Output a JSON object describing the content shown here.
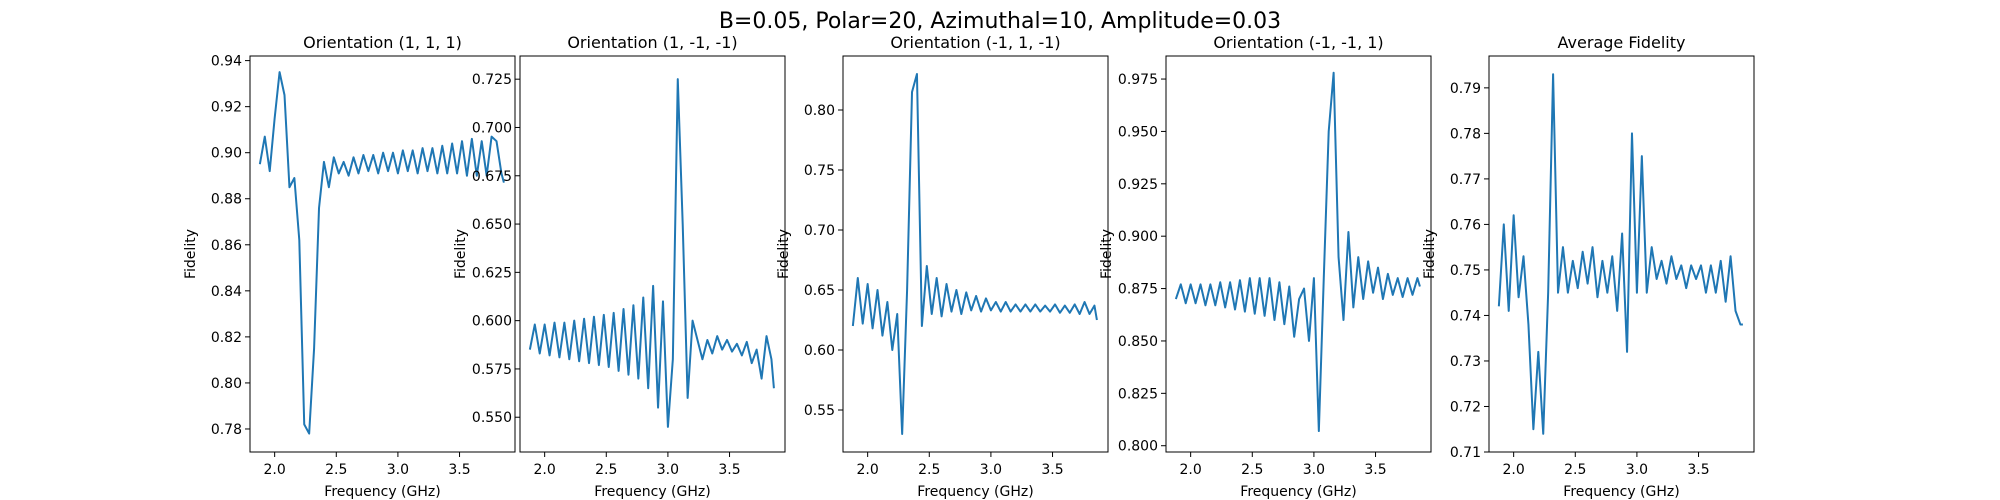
{
  "suptitle": "B=0.05, Polar=20, Azimuthal=10, Amplitude=0.03",
  "chart_data": [
    {
      "type": "line",
      "title": "Orientation (1, 1, 1)",
      "xlabel": "Frequency (GHz)",
      "ylabel": "Fidelity",
      "xlim": [
        1.8,
        3.95
      ],
      "ylim": [
        0.77,
        0.942
      ],
      "xticks": [
        "2.0",
        "2.5",
        "3.0",
        "3.5"
      ],
      "yticks": [
        "0.78",
        "0.80",
        "0.82",
        "0.84",
        "0.86",
        "0.88",
        "0.90",
        "0.92",
        "0.94"
      ],
      "color": "#1f77b4",
      "series": [
        {
          "x": [
            1.88,
            1.92,
            1.96,
            2.0,
            2.04,
            2.08,
            2.1,
            2.12,
            2.16,
            2.2,
            2.24,
            2.28,
            2.32,
            2.36,
            2.4,
            2.44,
            2.48,
            2.52,
            2.56,
            2.6,
            2.64,
            2.68,
            2.72,
            2.76,
            2.8,
            2.84,
            2.88,
            2.92,
            2.96,
            3.0,
            3.04,
            3.08,
            3.12,
            3.16,
            3.2,
            3.24,
            3.28,
            3.32,
            3.36,
            3.4,
            3.44,
            3.48,
            3.52,
            3.56,
            3.6,
            3.64,
            3.68,
            3.72,
            3.76,
            3.8,
            3.84,
            3.86
          ],
          "y": [
            0.895,
            0.907,
            0.892,
            0.915,
            0.935,
            0.925,
            0.905,
            0.885,
            0.889,
            0.862,
            0.782,
            0.778,
            0.815,
            0.876,
            0.896,
            0.885,
            0.898,
            0.891,
            0.896,
            0.89,
            0.898,
            0.891,
            0.899,
            0.892,
            0.899,
            0.891,
            0.9,
            0.892,
            0.9,
            0.891,
            0.901,
            0.892,
            0.901,
            0.891,
            0.902,
            0.892,
            0.902,
            0.891,
            0.903,
            0.891,
            0.904,
            0.891,
            0.905,
            0.89,
            0.906,
            0.89,
            0.905,
            0.89,
            0.907,
            0.905,
            0.891,
            0.887
          ]
        }
      ]
    },
    {
      "type": "line",
      "title": "Orientation (1, -1, -1)",
      "xlabel": "Frequency (GHz)",
      "ylabel": "Fidelity",
      "xlim": [
        1.8,
        3.95
      ],
      "ylim": [
        0.532,
        0.737
      ],
      "xticks": [
        "2.0",
        "2.5",
        "3.0",
        "3.5"
      ],
      "yticks": [
        "0.550",
        "0.575",
        "0.600",
        "0.625",
        "0.650",
        "0.675",
        "0.700",
        "0.725"
      ],
      "color": "#1f77b4",
      "series": [
        {
          "x": [
            1.88,
            1.92,
            1.96,
            2.0,
            2.04,
            2.08,
            2.12,
            2.16,
            2.2,
            2.24,
            2.28,
            2.32,
            2.36,
            2.4,
            2.44,
            2.48,
            2.52,
            2.56,
            2.6,
            2.64,
            2.68,
            2.72,
            2.76,
            2.8,
            2.84,
            2.88,
            2.92,
            2.96,
            3.0,
            3.04,
            3.08,
            3.12,
            3.16,
            3.2,
            3.24,
            3.28,
            3.32,
            3.36,
            3.4,
            3.44,
            3.48,
            3.52,
            3.56,
            3.6,
            3.64,
            3.68,
            3.72,
            3.76,
            3.8,
            3.84,
            3.86
          ],
          "y": [
            0.585,
            0.598,
            0.583,
            0.598,
            0.582,
            0.599,
            0.581,
            0.599,
            0.58,
            0.6,
            0.579,
            0.601,
            0.578,
            0.602,
            0.577,
            0.603,
            0.576,
            0.604,
            0.574,
            0.606,
            0.572,
            0.608,
            0.57,
            0.612,
            0.565,
            0.618,
            0.555,
            0.61,
            0.545,
            0.58,
            0.725,
            0.65,
            0.56,
            0.6,
            0.59,
            0.58,
            0.59,
            0.583,
            0.592,
            0.585,
            0.59,
            0.584,
            0.588,
            0.582,
            0.589,
            0.578,
            0.585,
            0.57,
            0.592,
            0.58,
            0.565
          ]
        }
      ]
    },
    {
      "type": "line",
      "title": "Orientation (-1, 1, -1)",
      "xlabel": "Frequency (GHz)",
      "ylabel": "Fidelity",
      "xlim": [
        1.8,
        3.95
      ],
      "ylim": [
        0.515,
        0.845
      ],
      "xticks": [
        "2.0",
        "2.5",
        "3.0",
        "3.5"
      ],
      "yticks": [
        "0.55",
        "0.60",
        "0.65",
        "0.70",
        "0.75",
        "0.80"
      ],
      "color": "#1f77b4",
      "series": [
        {
          "x": [
            1.88,
            1.92,
            1.96,
            2.0,
            2.04,
            2.08,
            2.12,
            2.16,
            2.2,
            2.24,
            2.28,
            2.32,
            2.36,
            2.4,
            2.44,
            2.48,
            2.52,
            2.56,
            2.6,
            2.64,
            2.68,
            2.72,
            2.76,
            2.8,
            2.84,
            2.88,
            2.92,
            2.96,
            3.0,
            3.04,
            3.08,
            3.12,
            3.16,
            3.2,
            3.24,
            3.28,
            3.32,
            3.36,
            3.4,
            3.44,
            3.48,
            3.52,
            3.56,
            3.6,
            3.64,
            3.68,
            3.72,
            3.76,
            3.8,
            3.84,
            3.86
          ],
          "y": [
            0.62,
            0.66,
            0.622,
            0.655,
            0.618,
            0.65,
            0.612,
            0.64,
            0.6,
            0.63,
            0.53,
            0.65,
            0.815,
            0.83,
            0.62,
            0.67,
            0.63,
            0.66,
            0.628,
            0.655,
            0.632,
            0.65,
            0.63,
            0.648,
            0.633,
            0.645,
            0.632,
            0.643,
            0.633,
            0.64,
            0.632,
            0.64,
            0.632,
            0.638,
            0.632,
            0.638,
            0.632,
            0.638,
            0.632,
            0.637,
            0.632,
            0.638,
            0.631,
            0.637,
            0.631,
            0.638,
            0.63,
            0.64,
            0.63,
            0.637,
            0.625
          ]
        }
      ]
    },
    {
      "type": "line",
      "title": "Orientation (-1, -1, 1)",
      "xlabel": "Frequency (GHz)",
      "ylabel": "Fidelity",
      "xlim": [
        1.8,
        3.95
      ],
      "ylim": [
        0.797,
        0.986
      ],
      "xticks": [
        "2.0",
        "2.5",
        "3.0",
        "3.5"
      ],
      "yticks": [
        "0.800",
        "0.825",
        "0.850",
        "0.875",
        "0.900",
        "0.925",
        "0.950",
        "0.975"
      ],
      "color": "#1f77b4",
      "series": [
        {
          "x": [
            1.88,
            1.92,
            1.96,
            2.0,
            2.04,
            2.08,
            2.12,
            2.16,
            2.2,
            2.24,
            2.28,
            2.32,
            2.36,
            2.4,
            2.44,
            2.48,
            2.52,
            2.56,
            2.6,
            2.64,
            2.68,
            2.72,
            2.76,
            2.8,
            2.84,
            2.88,
            2.92,
            2.96,
            3.0,
            3.04,
            3.08,
            3.12,
            3.16,
            3.2,
            3.24,
            3.28,
            3.32,
            3.36,
            3.4,
            3.44,
            3.48,
            3.52,
            3.56,
            3.6,
            3.64,
            3.68,
            3.72,
            3.76,
            3.8,
            3.84,
            3.86
          ],
          "y": [
            0.87,
            0.877,
            0.868,
            0.877,
            0.868,
            0.877,
            0.867,
            0.877,
            0.867,
            0.878,
            0.866,
            0.878,
            0.865,
            0.879,
            0.864,
            0.88,
            0.863,
            0.88,
            0.862,
            0.88,
            0.86,
            0.878,
            0.858,
            0.876,
            0.852,
            0.87,
            0.875,
            0.85,
            0.88,
            0.807,
            0.88,
            0.95,
            0.978,
            0.89,
            0.86,
            0.902,
            0.866,
            0.89,
            0.87,
            0.888,
            0.873,
            0.885,
            0.87,
            0.882,
            0.872,
            0.88,
            0.871,
            0.88,
            0.872,
            0.88,
            0.876
          ]
        }
      ]
    },
    {
      "type": "line",
      "title": "Average Fidelity",
      "xlabel": "Frequency (GHz)",
      "ylabel": "Fidelity",
      "xlim": [
        1.8,
        3.95
      ],
      "ylim": [
        0.71,
        0.797
      ],
      "xticks": [
        "2.0",
        "2.5",
        "3.0",
        "3.5"
      ],
      "yticks": [
        "0.71",
        "0.72",
        "0.73",
        "0.74",
        "0.75",
        "0.76",
        "0.77",
        "0.78",
        "0.79"
      ],
      "color": "#1f77b4",
      "series": [
        {
          "x": [
            1.88,
            1.92,
            1.96,
            2.0,
            2.04,
            2.08,
            2.12,
            2.16,
            2.2,
            2.24,
            2.28,
            2.32,
            2.36,
            2.4,
            2.44,
            2.48,
            2.52,
            2.56,
            2.6,
            2.64,
            2.68,
            2.72,
            2.76,
            2.8,
            2.84,
            2.88,
            2.92,
            2.96,
            3.0,
            3.04,
            3.08,
            3.12,
            3.16,
            3.2,
            3.24,
            3.28,
            3.32,
            3.36,
            3.4,
            3.44,
            3.48,
            3.52,
            3.56,
            3.6,
            3.64,
            3.68,
            3.72,
            3.76,
            3.8,
            3.84,
            3.86
          ],
          "y": [
            0.742,
            0.76,
            0.741,
            0.762,
            0.744,
            0.753,
            0.738,
            0.715,
            0.732,
            0.714,
            0.745,
            0.793,
            0.745,
            0.755,
            0.745,
            0.752,
            0.746,
            0.754,
            0.747,
            0.755,
            0.744,
            0.752,
            0.745,
            0.753,
            0.741,
            0.758,
            0.732,
            0.78,
            0.745,
            0.775,
            0.745,
            0.755,
            0.748,
            0.752,
            0.747,
            0.753,
            0.748,
            0.751,
            0.746,
            0.751,
            0.748,
            0.751,
            0.745,
            0.751,
            0.745,
            0.752,
            0.743,
            0.753,
            0.741,
            0.738,
            0.738
          ]
        }
      ]
    }
  ]
}
